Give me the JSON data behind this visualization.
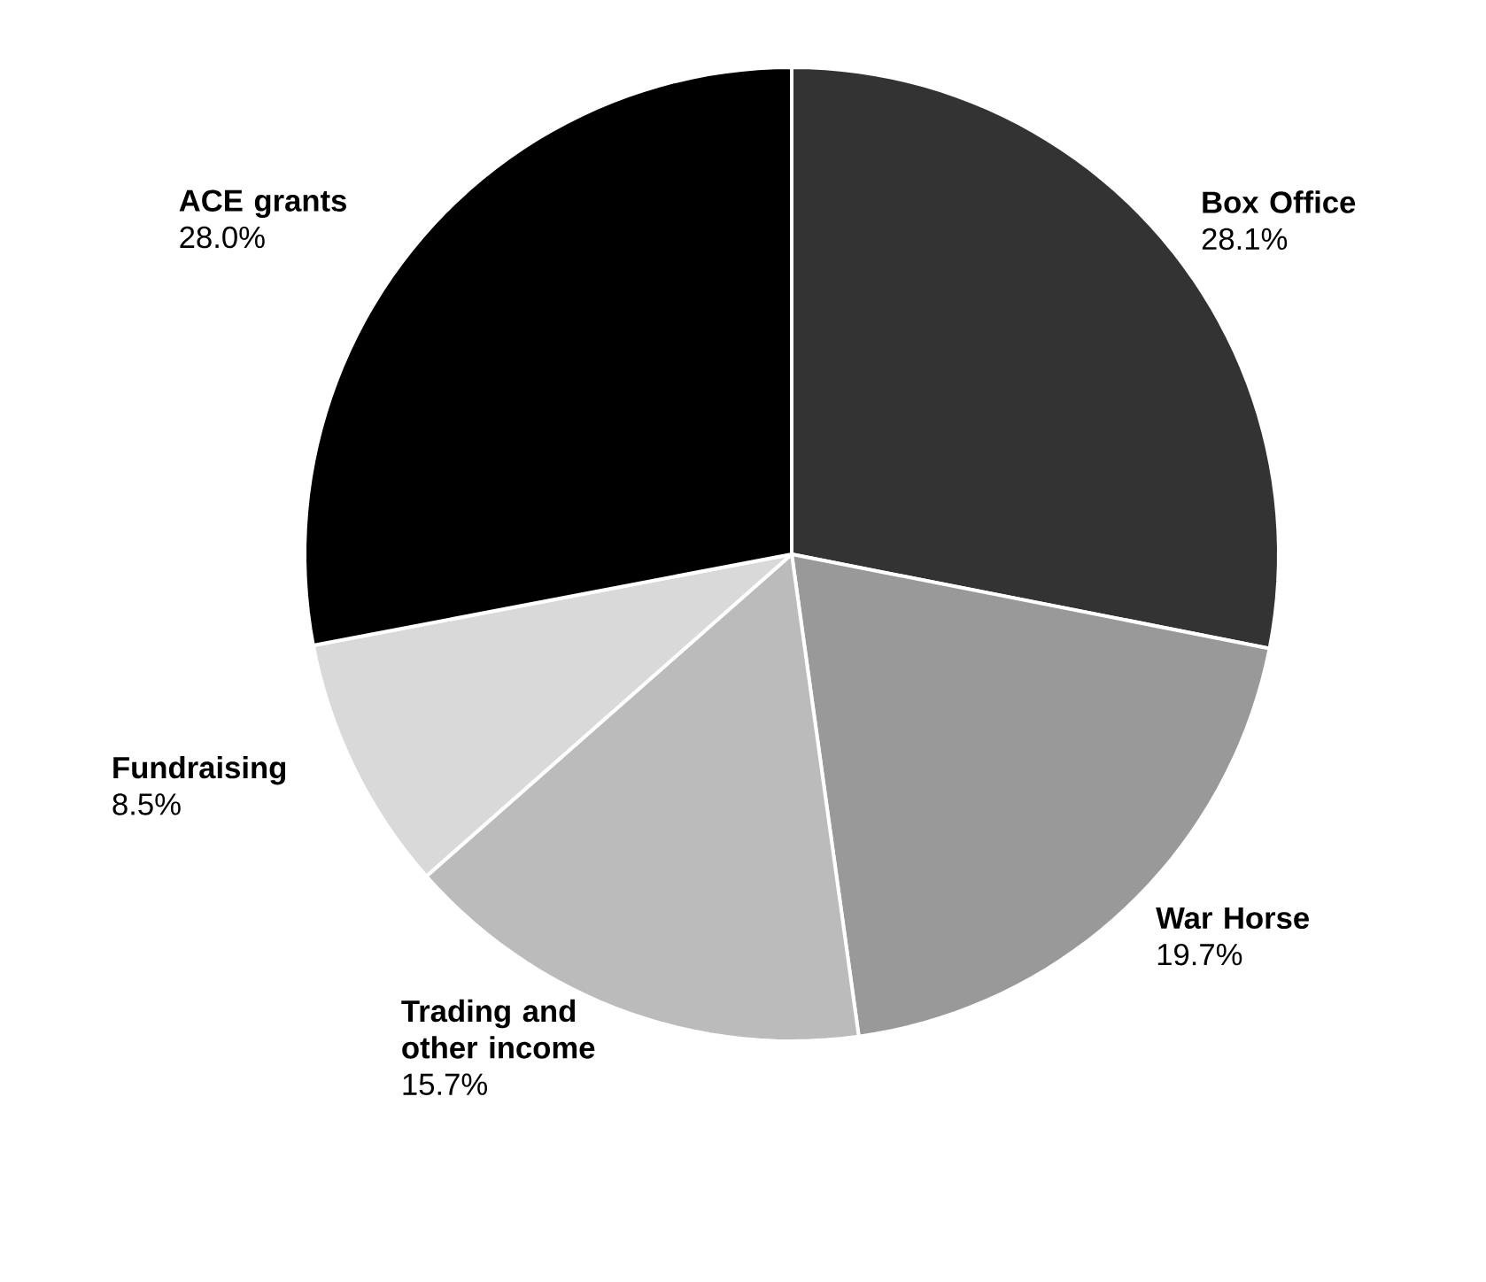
{
  "chart_data": {
    "type": "pie",
    "categories": [
      "Box Office",
      "War Horse",
      "Trading and other income",
      "Fundraising",
      "ACE grants"
    ],
    "values": [
      28.1,
      19.7,
      15.7,
      8.5,
      28.0
    ],
    "value_labels": [
      "28.1%",
      "19.7%",
      "15.7%",
      "8.5%",
      "28.0%"
    ],
    "colors": [
      "#333333",
      "#999999",
      "#bbbbbb",
      "#d9d9d9",
      "#000000"
    ]
  }
}
